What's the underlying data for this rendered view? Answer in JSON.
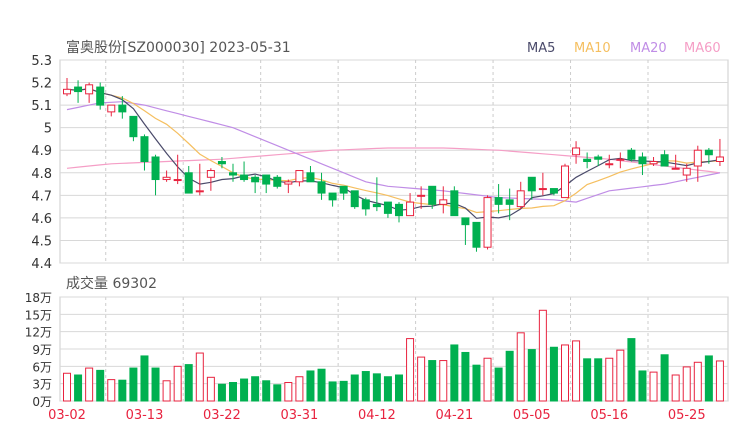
{
  "title": "富奥股份[SZ000030] 2023-05-31",
  "volume_label": "成交量 69302",
  "legend": [
    {
      "name": "MA5",
      "color": "#4a4a6a"
    },
    {
      "name": "MA10",
      "color": "#f5bf60"
    },
    {
      "name": "MA20",
      "color": "#c08de6"
    },
    {
      "name": "MA60",
      "color": "#f59ec6"
    }
  ],
  "colors": {
    "up": "#e8233f",
    "down": "#00b050",
    "grid": "#d8d8d8",
    "date": "#e8233f",
    "axis_text": "#333333"
  },
  "chart_data": [
    {
      "type": "candlestick",
      "title": "富奥股份[SZ000030] 2023-05-31",
      "ylim": [
        4.4,
        5.3
      ],
      "yticks": [
        "5.3",
        "5.2",
        "5.1",
        "5",
        "4.9",
        "4.8",
        "4.7",
        "4.6",
        "4.5",
        "4.4"
      ],
      "ytick_values": [
        5.3,
        5.2,
        5.1,
        5.0,
        4.9,
        4.8,
        4.7,
        4.6,
        4.5,
        4.4
      ],
      "x_labels": [
        {
          "index": 0,
          "label": "03-02"
        },
        {
          "index": 7,
          "label": "03-13"
        },
        {
          "index": 14,
          "label": "03-22"
        },
        {
          "index": 21,
          "label": "03-31"
        },
        {
          "index": 28,
          "label": "04-12"
        },
        {
          "index": 35,
          "label": "04-21"
        },
        {
          "index": 42,
          "label": "05-05"
        },
        {
          "index": 49,
          "label": "05-16"
        },
        {
          "index": 56,
          "label": "05-25"
        }
      ],
      "ohlc": [
        [
          5.15,
          5.22,
          5.14,
          5.17
        ],
        [
          5.18,
          5.21,
          5.11,
          5.16
        ],
        [
          5.15,
          5.2,
          5.11,
          5.19
        ],
        [
          5.18,
          5.2,
          5.08,
          5.1
        ],
        [
          5.07,
          5.1,
          5.05,
          5.1
        ],
        [
          5.1,
          5.14,
          5.04,
          5.07
        ],
        [
          5.05,
          5.05,
          4.94,
          4.96
        ],
        [
          4.96,
          4.97,
          4.81,
          4.85
        ],
        [
          4.87,
          4.88,
          4.7,
          4.77
        ],
        [
          4.77,
          4.81,
          4.76,
          4.78
        ],
        [
          4.77,
          4.88,
          4.75,
          4.77
        ],
        [
          4.8,
          4.83,
          4.71,
          4.71
        ],
        [
          4.72,
          4.84,
          4.7,
          4.72
        ],
        [
          4.78,
          4.82,
          4.72,
          4.81
        ],
        [
          4.85,
          4.87,
          4.82,
          4.84
        ],
        [
          4.8,
          4.84,
          4.76,
          4.79
        ],
        [
          4.79,
          4.85,
          4.76,
          4.77
        ],
        [
          4.78,
          4.79,
          4.71,
          4.76
        ],
        [
          4.79,
          4.79,
          4.71,
          4.75
        ],
        [
          4.78,
          4.79,
          4.73,
          4.74
        ],
        [
          4.75,
          4.77,
          4.71,
          4.76
        ],
        [
          4.76,
          4.81,
          4.74,
          4.81
        ],
        [
          4.8,
          4.83,
          4.76,
          4.76
        ],
        [
          4.76,
          4.8,
          4.68,
          4.71
        ],
        [
          4.71,
          4.71,
          4.65,
          4.68
        ],
        [
          4.74,
          4.74,
          4.68,
          4.71
        ],
        [
          4.72,
          4.72,
          4.64,
          4.65
        ],
        [
          4.68,
          4.69,
          4.61,
          4.64
        ],
        [
          4.66,
          4.78,
          4.63,
          4.65
        ],
        [
          4.67,
          4.67,
          4.6,
          4.62
        ],
        [
          4.66,
          4.67,
          4.58,
          4.61
        ],
        [
          4.61,
          4.71,
          4.61,
          4.67
        ],
        [
          4.7,
          4.74,
          4.64,
          4.7
        ],
        [
          4.74,
          4.74,
          4.64,
          4.66
        ],
        [
          4.66,
          4.74,
          4.62,
          4.68
        ],
        [
          4.72,
          4.74,
          4.61,
          4.61
        ],
        [
          4.6,
          4.6,
          4.48,
          4.57
        ],
        [
          4.58,
          4.58,
          4.45,
          4.47
        ],
        [
          4.47,
          4.7,
          4.46,
          4.69
        ],
        [
          4.69,
          4.75,
          4.62,
          4.66
        ],
        [
          4.68,
          4.73,
          4.59,
          4.66
        ],
        [
          4.65,
          4.76,
          4.64,
          4.72
        ],
        [
          4.78,
          4.78,
          4.68,
          4.72
        ],
        [
          4.73,
          4.8,
          4.7,
          4.73
        ],
        [
          4.73,
          4.73,
          4.7,
          4.71
        ],
        [
          4.69,
          4.84,
          4.69,
          4.83
        ],
        [
          4.88,
          4.94,
          4.84,
          4.91
        ],
        [
          4.86,
          4.89,
          4.82,
          4.85
        ],
        [
          4.87,
          4.88,
          4.83,
          4.86
        ],
        [
          4.84,
          4.88,
          4.82,
          4.84
        ],
        [
          4.86,
          4.89,
          4.82,
          4.86
        ],
        [
          4.9,
          4.91,
          4.85,
          4.86
        ],
        [
          4.87,
          4.89,
          4.79,
          4.84
        ],
        [
          4.84,
          4.87,
          4.83,
          4.85
        ],
        [
          4.88,
          4.9,
          4.83,
          4.83
        ],
        [
          4.82,
          4.88,
          4.82,
          4.82
        ],
        [
          4.79,
          4.84,
          4.76,
          4.82
        ],
        [
          4.83,
          4.92,
          4.76,
          4.9
        ],
        [
          4.9,
          4.91,
          4.84,
          4.88
        ],
        [
          4.85,
          4.95,
          4.83,
          4.87
        ]
      ],
      "ma20_points": [
        [
          0,
          5.08
        ],
        [
          3,
          5.11
        ],
        [
          5,
          5.115
        ],
        [
          7,
          5.1
        ],
        [
          11,
          5.05
        ],
        [
          15,
          5.0
        ],
        [
          19,
          4.92
        ],
        [
          23,
          4.84
        ],
        [
          27,
          4.76
        ],
        [
          29,
          4.74
        ],
        [
          34,
          4.72
        ],
        [
          39,
          4.69
        ],
        [
          44,
          4.68
        ],
        [
          46,
          4.67
        ],
        [
          49,
          4.72
        ],
        [
          54,
          4.75
        ],
        [
          57,
          4.78
        ],
        [
          59,
          4.8
        ]
      ],
      "ma60_points": [
        [
          0,
          4.82
        ],
        [
          4,
          4.84
        ],
        [
          9,
          4.85
        ],
        [
          14,
          4.86
        ],
        [
          19,
          4.88
        ],
        [
          24,
          4.9
        ],
        [
          29,
          4.91
        ],
        [
          34,
          4.91
        ],
        [
          39,
          4.9
        ],
        [
          44,
          4.88
        ],
        [
          49,
          4.86
        ],
        [
          54,
          4.83
        ],
        [
          59,
          4.8
        ]
      ]
    },
    {
      "type": "bar",
      "title": "成交量 69302",
      "unit": "万",
      "ylim": [
        0,
        18
      ],
      "yticks": [
        "18万",
        "15万",
        "12万",
        "9万",
        "6万",
        "3万",
        "0万"
      ],
      "ytick_values": [
        18,
        15,
        12,
        9,
        6,
        3,
        0
      ],
      "values": [
        4.8,
        4.5,
        5.7,
        5.3,
        3.7,
        3.6,
        5.7,
        7.8,
        5.7,
        3.5,
        6.0,
        6.3,
        8.3,
        4.1,
        2.9,
        3.2,
        3.8,
        4.2,
        3.5,
        2.8,
        3.2,
        4.2,
        5.2,
        5.5,
        3.3,
        3.4,
        4.5,
        5.1,
        4.7,
        4.2,
        4.5,
        10.8,
        7.6,
        7.0,
        7.0,
        9.7,
        8.4,
        6.2,
        7.4,
        5.7,
        8.6,
        11.8,
        8.9,
        15.7,
        9.3,
        9.7,
        10.4,
        7.3,
        7.3,
        7.4,
        8.8,
        10.8,
        5.2,
        5.0,
        8.0,
        4.5,
        5.9,
        6.7,
        7.8,
        6.93
      ]
    }
  ]
}
